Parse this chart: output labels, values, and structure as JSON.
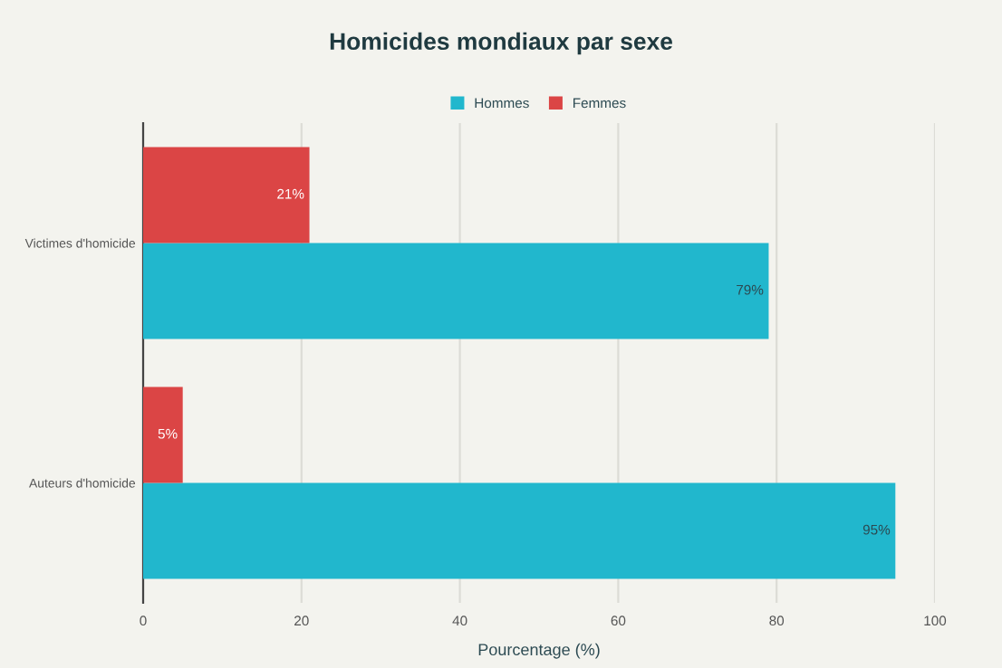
{
  "chart_data": {
    "type": "bar",
    "orientation": "horizontal",
    "title": "Homicides mondiaux par sexe",
    "xlabel": "Pourcentage (%)",
    "categories": [
      "Victimes d'homicide",
      "Auteurs d'homicide"
    ],
    "series": [
      {
        "name": "Hommes",
        "color": "#21b7cd",
        "values": [
          79,
          95
        ],
        "value_labels": [
          "79%",
          "95%"
        ]
      },
      {
        "name": "Femmes",
        "color": "#db4545",
        "values": [
          21,
          5
        ],
        "value_labels": [
          "21%",
          "5%"
        ]
      }
    ],
    "xlim": [
      0,
      100
    ],
    "xticks": [
      0,
      20,
      40,
      60,
      80,
      100
    ],
    "grid": "x",
    "legend": "top"
  }
}
